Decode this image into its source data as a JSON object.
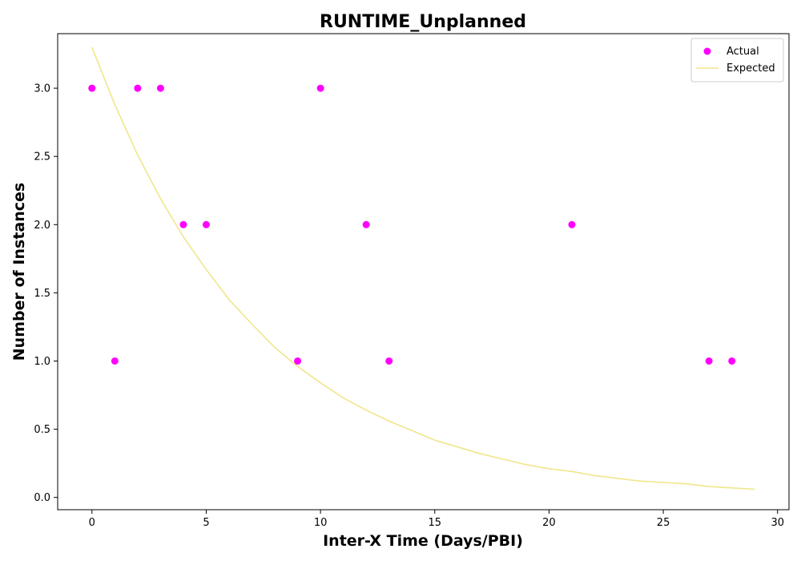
{
  "chart_data": {
    "type": "scatter",
    "title": "RUNTIME_Unplanned",
    "xlabel": "Inter-X Time (Days/PBI)",
    "ylabel": "Number of Instances",
    "xlim": [
      -1.5,
      30.5
    ],
    "ylim": [
      -0.09,
      3.4
    ],
    "x_ticks": [
      0,
      5,
      10,
      15,
      20,
      25,
      30
    ],
    "y_ticks": [
      0.0,
      0.5,
      1.0,
      1.5,
      2.0,
      2.5,
      3.0
    ],
    "x_tick_labels": [
      "0",
      "5",
      "10",
      "15",
      "20",
      "25",
      "30"
    ],
    "y_tick_labels": [
      "0.0",
      "0.5",
      "1.0",
      "1.5",
      "2.0",
      "2.5",
      "3.0"
    ],
    "grid": false,
    "legend_position": "top-right",
    "series": [
      {
        "name": "Actual",
        "kind": "scatter",
        "color": "#ff00ff",
        "x": [
          0,
          1,
          2,
          3,
          4,
          5,
          9,
          10,
          12,
          13,
          21,
          27,
          28
        ],
        "y": [
          3,
          1,
          3,
          3,
          2,
          2,
          1,
          3,
          2,
          1,
          2,
          1,
          1
        ]
      },
      {
        "name": "Expected",
        "kind": "line",
        "color": "#f0e68c",
        "x": [
          0,
          1,
          2,
          3,
          4,
          5,
          6,
          7,
          8,
          9,
          10,
          11,
          12,
          13,
          14,
          15,
          16,
          17,
          18,
          19,
          20,
          21,
          22,
          23,
          24,
          25,
          26,
          27,
          28,
          29
        ],
        "y": [
          3.3,
          2.88,
          2.51,
          2.19,
          1.91,
          1.67,
          1.45,
          1.27,
          1.1,
          0.96,
          0.84,
          0.73,
          0.64,
          0.56,
          0.49,
          0.42,
          0.37,
          0.32,
          0.28,
          0.24,
          0.21,
          0.19,
          0.16,
          0.14,
          0.12,
          0.11,
          0.1,
          0.08,
          0.07,
          0.06
        ]
      }
    ]
  }
}
